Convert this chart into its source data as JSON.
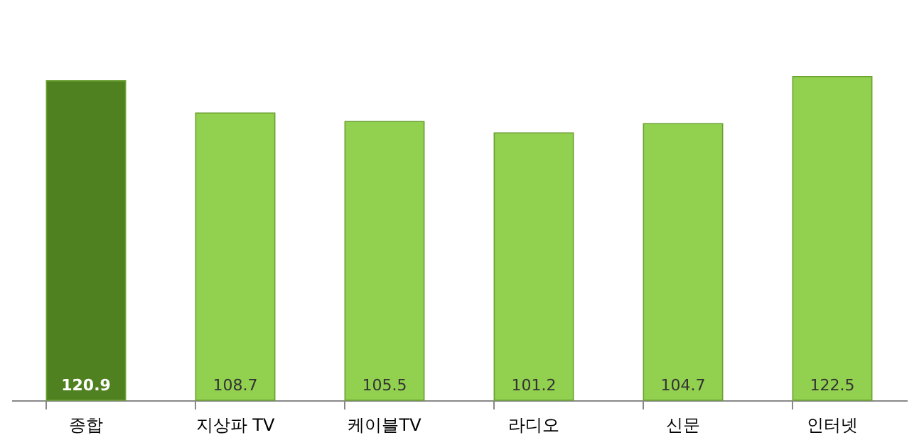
{
  "chart_data": {
    "type": "bar",
    "categories": [
      "종합",
      "지상파 TV",
      "케이블TV",
      "라디오",
      "신문",
      "인터넷"
    ],
    "values": [
      120.9,
      108.7,
      105.5,
      101.2,
      104.7,
      122.5
    ],
    "colors": [
      "#4f8120",
      "#92d050",
      "#92d050",
      "#92d050",
      "#92d050",
      "#92d050"
    ],
    "data_labels": true,
    "grid": false,
    "tick_labels": "x"
  }
}
